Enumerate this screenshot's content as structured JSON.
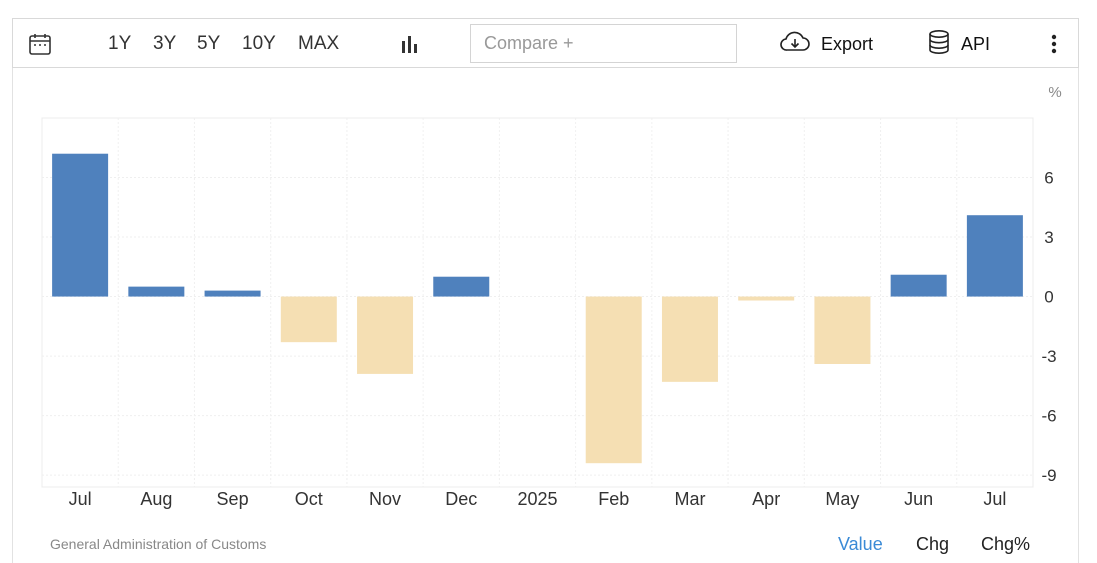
{
  "toolbar": {
    "calendar_icon": "calendar-icon",
    "ranges": [
      "1Y",
      "3Y",
      "5Y",
      "10Y",
      "MAX"
    ],
    "chart_type_icon": "bar-chart-icon",
    "compare_placeholder": "Compare +",
    "export_label": "Export",
    "export_icon": "cloud-download-icon",
    "api_label": "API",
    "api_icon": "database-icon",
    "more_icon": "vertical-dots-icon"
  },
  "footer": {
    "source": "General Administration of Customs",
    "tabs": [
      "Value",
      "Chg",
      "Chg%"
    ],
    "active_tab": "Value"
  },
  "colors": {
    "positive": "#4f81bd",
    "negative": "#f5dfb3",
    "active_tab": "#3a8ad6"
  },
  "chart_data": {
    "type": "bar",
    "unit_label": "%",
    "categories": [
      "Jul",
      "Aug",
      "Sep",
      "Oct",
      "Nov",
      "Dec",
      "2025",
      "Feb",
      "Mar",
      "Apr",
      "May",
      "Jun",
      "Jul"
    ],
    "values": [
      7.2,
      0.5,
      0.3,
      -2.3,
      -3.9,
      1.0,
      null,
      -8.4,
      -4.3,
      -0.2,
      -3.4,
      1.1,
      4.1
    ],
    "y_ticks": [
      6,
      3,
      0,
      -3,
      -6,
      -9
    ],
    "ylim": [
      -9.6,
      9.0
    ],
    "grid": true,
    "axis_side": "right"
  }
}
